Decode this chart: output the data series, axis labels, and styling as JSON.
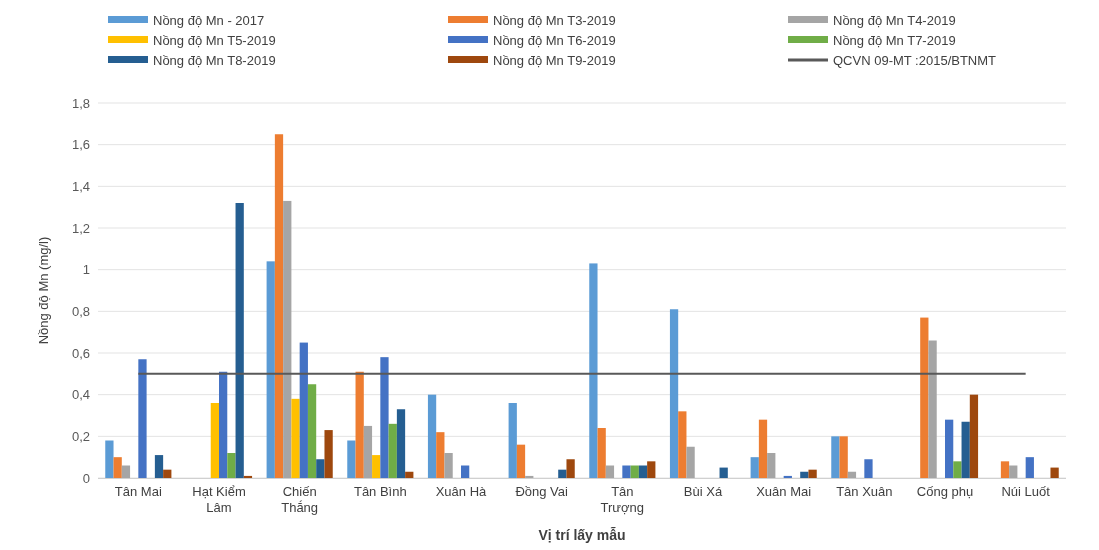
{
  "chart_data": {
    "type": "bar",
    "xlabel": "Vị trí lấy mẫu",
    "ylabel": "Nồng độ Mn (mg/l)",
    "categories": [
      "Tân Mai",
      "Hạt Kiểm Lâm",
      "Chiến Thắng",
      "Tân Bình",
      "Xuân Hà",
      "Đồng Vai",
      "Tân Trượng",
      "Bùi Xá",
      "Xuân Mai",
      "Tân Xuân",
      "Cống phụ",
      "Núi Luốt"
    ],
    "series": [
      {
        "name": "Nồng độ Mn - 2017",
        "color": "#5b9bd5",
        "values": [
          0.18,
          0,
          1.04,
          0.18,
          0.4,
          0.36,
          1.03,
          0.81,
          0.1,
          0.2,
          0,
          0
        ]
      },
      {
        "name": "Nồng độ Mn T3-2019",
        "color": "#ed7d31",
        "values": [
          0.1,
          0,
          1.65,
          0.51,
          0.22,
          0.16,
          0.24,
          0.32,
          0.28,
          0.2,
          0.77,
          0.08
        ]
      },
      {
        "name": "Nồng độ Mn T4-2019",
        "color": "#a5a5a5",
        "values": [
          0.06,
          0,
          1.33,
          0.25,
          0.12,
          0.01,
          0.06,
          0.15,
          0.12,
          0.03,
          0.66,
          0.06
        ]
      },
      {
        "name": "Nồng độ Mn T5-2019",
        "color": "#ffc000",
        "values": [
          0,
          0.36,
          0.38,
          0.11,
          0,
          0,
          0,
          0,
          0,
          0,
          0,
          0
        ]
      },
      {
        "name": "Nồng độ Mn T6-2019",
        "color": "#4472c4",
        "values": [
          0.57,
          0.51,
          0.65,
          0.58,
          0.06,
          0,
          0.06,
          0,
          0.01,
          0.09,
          0.28,
          0.1
        ]
      },
      {
        "name": "Nồng độ Mn T7-2019",
        "color": "#70ad47",
        "values": [
          0,
          0.12,
          0.45,
          0.26,
          0,
          0,
          0.06,
          0,
          0,
          0,
          0.08,
          0
        ]
      },
      {
        "name": "Nồng độ Mn T8-2019",
        "color": "#255e91",
        "values": [
          0.11,
          1.32,
          0.09,
          0.33,
          0,
          0.04,
          0.06,
          0.05,
          0.03,
          0,
          0.27,
          0
        ]
      },
      {
        "name": "Nồng độ Mn T9-2019",
        "color": "#9e480e",
        "values": [
          0.04,
          0.01,
          0.23,
          0.03,
          0,
          0.09,
          0.08,
          0,
          0.04,
          0,
          0.4,
          0.05
        ]
      },
      {
        "name": "QCVN 09-MT :2015/BTNMT",
        "type": "line",
        "color": "#595959",
        "values": [
          0.5,
          0.5,
          0.5,
          0.5,
          0.5,
          0.5,
          0.5,
          0.5,
          0.5,
          0.5,
          0.5,
          0.5
        ]
      }
    ],
    "ylim": [
      0,
      1.8
    ],
    "yticks": [
      0,
      {
        "value": 0.2,
        "label": "0,2"
      },
      {
        "value": 0.4,
        "label": "0,4"
      },
      {
        "value": 0.6,
        "label": "0,6"
      },
      {
        "value": 0.8,
        "label": "0,8"
      },
      1,
      {
        "value": 1.2,
        "label": "1,2"
      },
      {
        "value": 1.4,
        "label": "1,4"
      },
      {
        "value": 1.6,
        "label": "1,6"
      },
      {
        "value": 1.8,
        "label": "1,8"
      }
    ],
    "grid": "y",
    "legend": "top"
  }
}
